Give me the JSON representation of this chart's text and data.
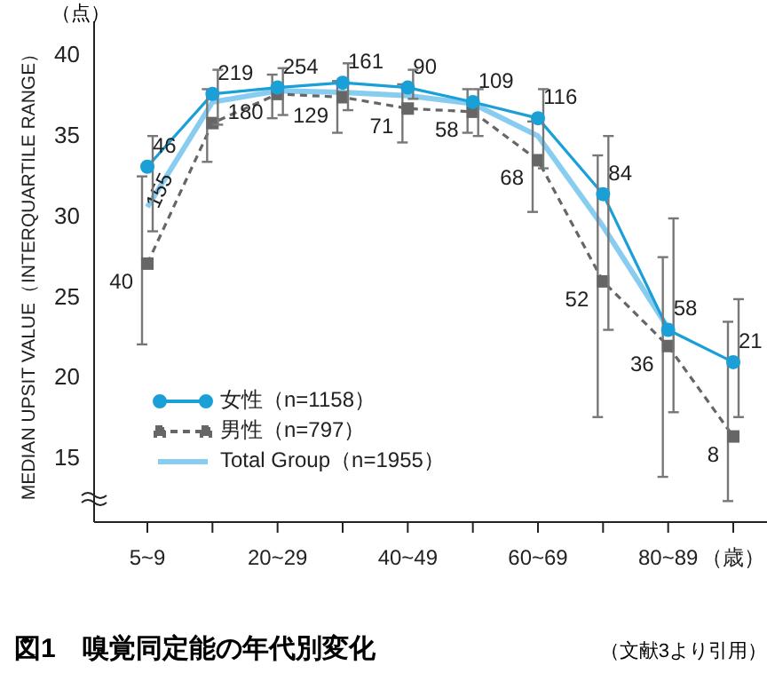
{
  "chart_data": {
    "type": "line",
    "title": "図1　嗅覚同定能の年代別変化",
    "xlabel": "（歳）",
    "ylabel": "MEDIAN UPSIT VALUE（INTERQUARTILE RANGE）",
    "annotations": [
      "（点）",
      "（文献3より引用）",
      "46",
      "219",
      "254",
      "161",
      "90",
      "109",
      "116",
      "84",
      "58",
      "21",
      "40",
      "155",
      "180",
      "129",
      "71",
      "58",
      "68",
      "52",
      "36",
      "8"
    ],
    "categories": [
      "5~9",
      null,
      "20~29",
      null,
      "40~49",
      null,
      "60~69",
      null,
      "80~89",
      null
    ],
    "ylim": [
      11,
      42
    ],
    "yticks": [
      15,
      20,
      25,
      30,
      35,
      40
    ],
    "grid": false,
    "legend": "bottom left",
    "series": [
      {
        "name": "女性（n=1158）",
        "color": "#1a9fd6",
        "marker": "circle",
        "line_style": "solid",
        "values": [
          33.0,
          37.5,
          37.9,
          38.2,
          37.9,
          37.0,
          36.0,
          31.3,
          22.9,
          20.9
        ],
        "errors": [
          [
            29.0,
            34.9
          ],
          [
            35.6,
            39.0
          ],
          [
            36.2,
            39.1
          ],
          [
            36.5,
            39.4
          ],
          [
            37.2,
            39.0
          ],
          [
            34.9,
            37.8
          ],
          [
            32.9,
            37.8
          ],
          [
            22.9,
            34.9
          ],
          [
            17.8,
            29.8
          ],
          [
            17.5,
            24.8
          ]
        ]
      },
      {
        "name": "男性（n=797）",
        "color": "#666666",
        "marker": "square",
        "line_style": "dashed",
        "values": [
          27.0,
          35.7,
          37.5,
          37.3,
          36.6,
          36.4,
          33.4,
          25.9,
          21.9,
          16.3
        ],
        "errors": [
          [
            22.0,
            32.4
          ],
          [
            33.3,
            37.8
          ],
          [
            36.0,
            38.7
          ],
          [
            35.1,
            38.3
          ],
          [
            34.5,
            38.1
          ],
          [
            35.1,
            37.8
          ],
          [
            30.2,
            35.8
          ],
          [
            17.5,
            33.7
          ],
          [
            13.8,
            27.4
          ],
          [
            12.3,
            23.4
          ]
        ]
      },
      {
        "name": "Total Group（n=1955）",
        "color": "#88cdf0",
        "marker": "none",
        "line_style": "solid",
        "values": [
          30.5,
          37.0,
          37.7,
          37.6,
          37.4,
          36.9,
          34.9,
          29.3,
          23.0,
          null
        ]
      }
    ]
  }
}
